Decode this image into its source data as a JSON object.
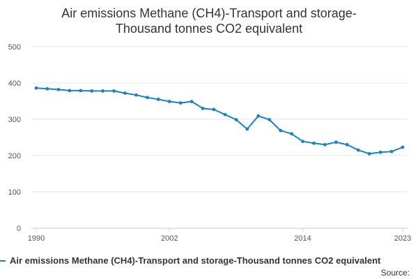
{
  "title_lines": [
    "Air emissions Methane (CH4)-Transport and storage-",
    "Thousand tonnes CO2 equivalent"
  ],
  "legend_label": "Air emissions Methane (CH4)-Transport and storage-Thousand tonnes CO2 equivalent",
  "source_label": "Source:",
  "colors": {
    "series": "#1a82c0",
    "grid": "#e6e6e6",
    "axis": "#ccd6eb"
  },
  "chart_data": {
    "type": "line",
    "title": "Air emissions Methane (CH4)-Transport and storage-Thousand tonnes CO2 equivalent",
    "xlabel": "",
    "ylabel": "",
    "x": [
      1990,
      1991,
      1992,
      1993,
      1994,
      1995,
      1996,
      1997,
      1998,
      1999,
      2000,
      2001,
      2002,
      2003,
      2004,
      2005,
      2006,
      2007,
      2008,
      2009,
      2010,
      2011,
      2012,
      2013,
      2014,
      2015,
      2016,
      2017,
      2018,
      2019,
      2020,
      2021,
      2022,
      2023
    ],
    "series": [
      {
        "name": "Air emissions Methane (CH4)-Transport and storage-Thousand tonnes CO2 equivalent",
        "values": [
          386,
          384,
          382,
          379,
          379,
          378,
          378,
          378,
          372,
          367,
          360,
          355,
          349,
          345,
          349,
          330,
          327,
          313,
          299,
          273,
          309,
          299,
          269,
          260,
          239,
          234,
          230,
          237,
          230,
          215,
          205,
          209,
          211,
          223
        ]
      }
    ],
    "xticks": [
      1990,
      2002,
      2014,
      2023
    ],
    "ylim": [
      0,
      500
    ],
    "yticks": [
      0,
      100,
      200,
      300,
      400,
      500
    ],
    "grid": true,
    "legend": "bottom"
  }
}
